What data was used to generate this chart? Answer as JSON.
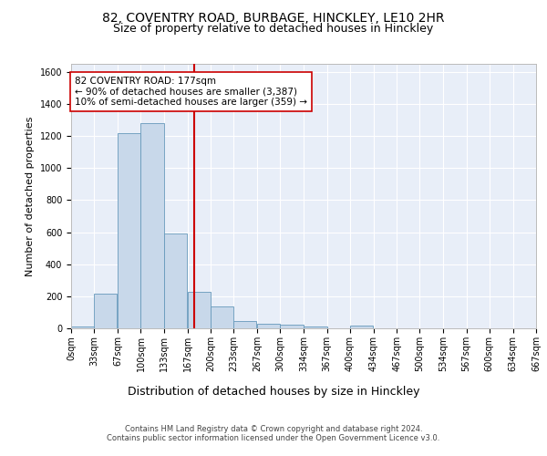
{
  "title_line1": "82, COVENTRY ROAD, BURBAGE, HINCKLEY, LE10 2HR",
  "title_line2": "Size of property relative to detached houses in Hinckley",
  "xlabel": "Distribution of detached houses by size in Hinckley",
  "ylabel": "Number of detached properties",
  "footer_line1": "Contains HM Land Registry data © Crown copyright and database right 2024.",
  "footer_line2": "Contains public sector information licensed under the Open Government Licence v3.0.",
  "bin_edges": [
    0,
    33,
    67,
    100,
    133,
    167,
    200,
    233,
    267,
    300,
    334,
    367,
    400,
    434,
    467,
    500,
    534,
    567,
    600,
    634,
    667
  ],
  "bar_heights": [
    10,
    218,
    1220,
    1280,
    590,
    230,
    135,
    45,
    28,
    22,
    10,
    0,
    15,
    0,
    0,
    0,
    0,
    0,
    0,
    0
  ],
  "bar_color": "#c8d8ea",
  "bar_edge_color": "#6699bb",
  "vline_x": 177,
  "vline_color": "#cc0000",
  "annotation_text": "82 COVENTRY ROAD: 177sqm\n← 90% of detached houses are smaller (3,387)\n10% of semi-detached houses are larger (359) →",
  "annotation_box_color": "white",
  "annotation_box_edge_color": "#cc0000",
  "ylim": [
    0,
    1650
  ],
  "yticks": [
    0,
    200,
    400,
    600,
    800,
    1000,
    1200,
    1400,
    1600
  ],
  "plot_bg_color": "#e8eef8",
  "grid_color": "white",
  "title1_fontsize": 10,
  "title2_fontsize": 9,
  "xlabel_fontsize": 9,
  "ylabel_fontsize": 8,
  "tick_fontsize": 7,
  "footer_fontsize": 6,
  "annot_fontsize": 7.5
}
